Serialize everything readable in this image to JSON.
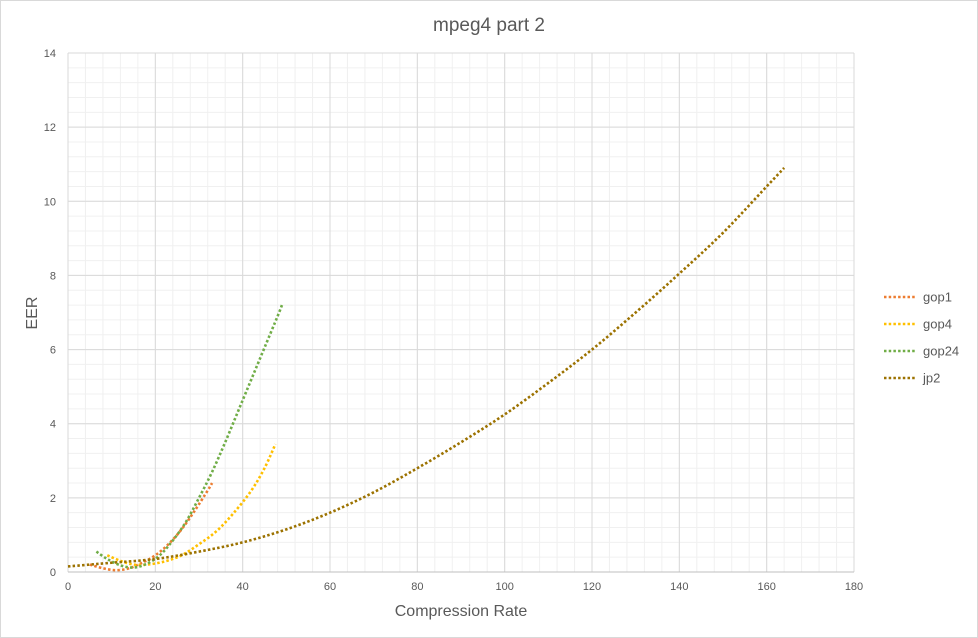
{
  "chart_data": {
    "type": "line",
    "title": "mpeg4 part 2",
    "xlabel": "Compression Rate",
    "ylabel": "EER",
    "xlim": [
      0,
      180
    ],
    "ylim": [
      0,
      14
    ],
    "x_ticks": [
      "0",
      "20",
      "40",
      "60",
      "80",
      "100",
      "120",
      "140",
      "160",
      "180"
    ],
    "y_ticks": [
      "0",
      "2",
      "4",
      "6",
      "8",
      "10",
      "12",
      "14"
    ],
    "grid": true,
    "minor_grid": true,
    "line_style": "dotted",
    "legend_position": "right",
    "series": [
      {
        "name": "gop1",
        "color": "#ed7d31",
        "points": [
          [
            5,
            0.2
          ],
          [
            8,
            0.1
          ],
          [
            11,
            0.05
          ],
          [
            14,
            0.1
          ],
          [
            17,
            0.25
          ],
          [
            20,
            0.45
          ],
          [
            23,
            0.75
          ],
          [
            26,
            1.15
          ],
          [
            29,
            1.65
          ],
          [
            32,
            2.2
          ],
          [
            33,
            2.4
          ]
        ]
      },
      {
        "name": "gop4",
        "color": "#ffc000",
        "points": [
          [
            9,
            0.45
          ],
          [
            12,
            0.3
          ],
          [
            15,
            0.2
          ],
          [
            18,
            0.2
          ],
          [
            22,
            0.28
          ],
          [
            26,
            0.45
          ],
          [
            30,
            0.75
          ],
          [
            34,
            1.1
          ],
          [
            38,
            1.6
          ],
          [
            42,
            2.2
          ],
          [
            45,
            2.8
          ],
          [
            47.5,
            3.45
          ]
        ]
      },
      {
        "name": "gop24",
        "color": "#70ad47",
        "points": [
          [
            6.5,
            0.55
          ],
          [
            9,
            0.35
          ],
          [
            12,
            0.18
          ],
          [
            15,
            0.12
          ],
          [
            18,
            0.22
          ],
          [
            21,
            0.45
          ],
          [
            24,
            0.85
          ],
          [
            27,
            1.35
          ],
          [
            30,
            2.0
          ],
          [
            33,
            2.7
          ],
          [
            36,
            3.5
          ],
          [
            39,
            4.35
          ],
          [
            42,
            5.2
          ],
          [
            45,
            6.05
          ],
          [
            48,
            6.9
          ],
          [
            49,
            7.2
          ]
        ]
      },
      {
        "name": "jp2",
        "color": "#9c7200",
        "points": [
          [
            0,
            0.15
          ],
          [
            5,
            0.2
          ],
          [
            10,
            0.25
          ],
          [
            20,
            0.35
          ],
          [
            30,
            0.55
          ],
          [
            40,
            0.8
          ],
          [
            50,
            1.15
          ],
          [
            60,
            1.6
          ],
          [
            70,
            2.15
          ],
          [
            80,
            2.8
          ],
          [
            90,
            3.5
          ],
          [
            100,
            4.25
          ],
          [
            110,
            5.1
          ],
          [
            120,
            6.0
          ],
          [
            130,
            7.0
          ],
          [
            140,
            8.05
          ],
          [
            150,
            9.15
          ],
          [
            160,
            10.4
          ],
          [
            164,
            10.9
          ]
        ]
      }
    ]
  }
}
